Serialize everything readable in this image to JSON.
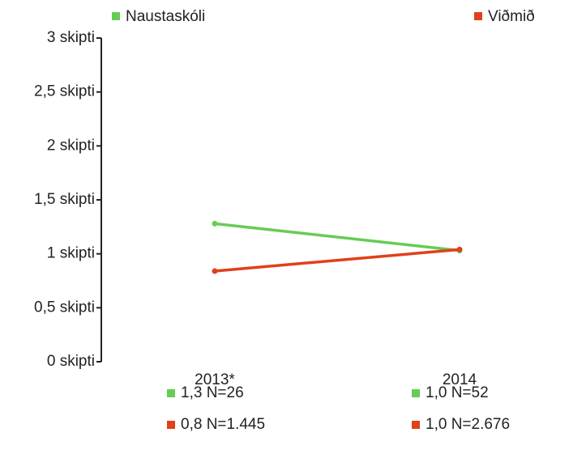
{
  "chart_data": {
    "type": "line",
    "categories": [
      "2013*",
      "2014"
    ],
    "series": [
      {
        "name": "Naustaskóli",
        "color": "#66cc55",
        "values": [
          1.28,
          1.03
        ],
        "value_labels": [
          "1,3 N=26",
          "1,0 N=52"
        ]
      },
      {
        "name": "Viðmið",
        "color": "#e0401a",
        "values": [
          0.84,
          1.04
        ],
        "value_labels": [
          "0,8 N=1.445",
          "1,0 N=2.676"
        ]
      }
    ],
    "ylim": [
      0,
      3
    ],
    "yticks": [
      {
        "value": 0,
        "label": "0 skipti"
      },
      {
        "value": 0.5,
        "label": "0,5 skipti"
      },
      {
        "value": 1,
        "label": "1 skipti"
      },
      {
        "value": 1.5,
        "label": "1,5 skipti"
      },
      {
        "value": 2,
        "label": "2 skipti"
      },
      {
        "value": 2.5,
        "label": "2,5 skipti"
      },
      {
        "value": 3,
        "label": "3 skipti"
      }
    ],
    "legend": "top"
  }
}
